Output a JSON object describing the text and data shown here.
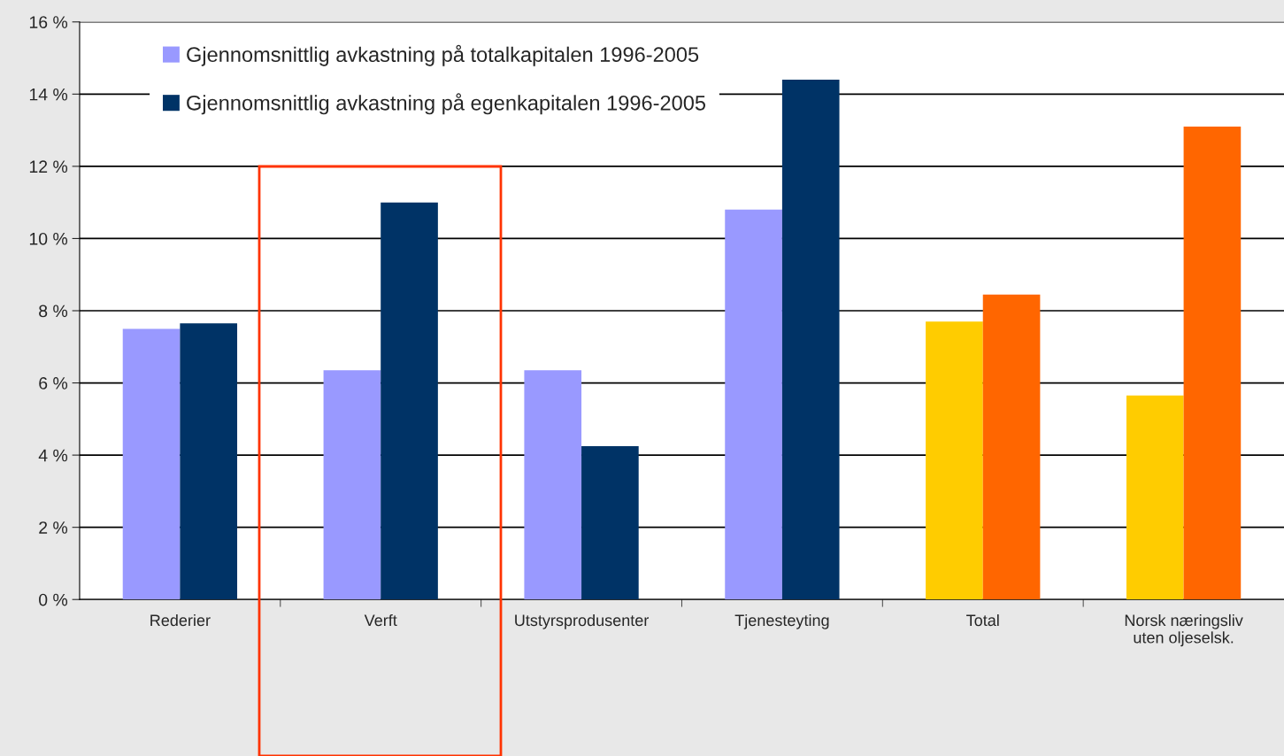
{
  "chart_data": {
    "type": "bar",
    "categories": [
      "Rederier",
      "Verft",
      "Utstyrsprodusenter",
      "Tjenesteyting",
      "Total",
      "Norsk næringsliv\nuten oljeselsk."
    ],
    "series": [
      {
        "name": "Gjennomsnittlig avkastning på totalkapitalen 1996-2005",
        "color": "#9999ff",
        "colors": [
          "#9999ff",
          "#9999ff",
          "#9999ff",
          "#9999ff",
          "#ffcc00",
          "#ffcc00"
        ],
        "values": [
          7.5,
          6.35,
          6.35,
          10.8,
          7.7,
          5.65
        ]
      },
      {
        "name": "Gjennomsnittlig avkastning på egenkapitalen 1996-2005",
        "color": "#003366",
        "colors": [
          "#003366",
          "#003366",
          "#003366",
          "#003366",
          "#ff6600",
          "#ff6600"
        ],
        "values": [
          7.65,
          11.0,
          4.25,
          14.4,
          8.45,
          13.1
        ]
      }
    ],
    "ylim": [
      0,
      16
    ],
    "yticks": [
      {
        "value": 0,
        "label": "0 %"
      },
      {
        "value": 2,
        "label": "2 %"
      },
      {
        "value": 4,
        "label": "4 %"
      },
      {
        "value": 6,
        "label": "6 %"
      },
      {
        "value": 8,
        "label": "8 %"
      },
      {
        "value": 10,
        "label": "10 %"
      },
      {
        "value": 12,
        "label": "12 %"
      },
      {
        "value": 14,
        "label": "14 %"
      },
      {
        "value": 16,
        "label": "16 %"
      }
    ],
    "grid": "y",
    "legend": "top left"
  }
}
